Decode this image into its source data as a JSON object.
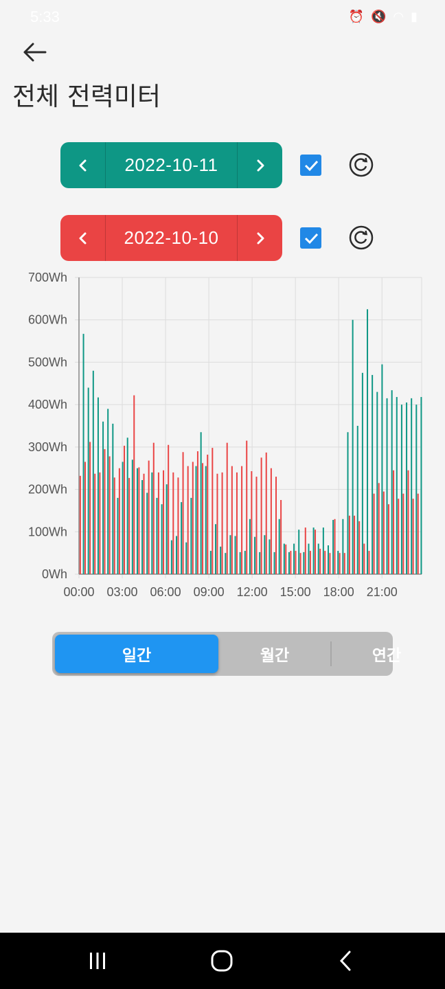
{
  "status_bar": {
    "time": "5:33"
  },
  "header": {
    "title": "전체 전력미터"
  },
  "date_pickers": [
    {
      "date": "2022-10-11",
      "color": "#0e9785",
      "checked": true
    },
    {
      "date": "2022-10-10",
      "color": "#ea4444",
      "checked": true
    }
  ],
  "tabs": [
    {
      "label": "일간",
      "active": true
    },
    {
      "label": "월간",
      "active": false
    },
    {
      "label": "연간",
      "active": false
    }
  ],
  "chart_data": {
    "type": "bar",
    "ylim": [
      0,
      700
    ],
    "y_ticks": [
      "0Wh",
      "100Wh",
      "200Wh",
      "300Wh",
      "400Wh",
      "500Wh",
      "600Wh",
      "700Wh"
    ],
    "x_ticks": [
      "00:00",
      "03:00",
      "06:00",
      "09:00",
      "12:00",
      "15:00",
      "18:00",
      "21:00"
    ],
    "grid": true,
    "series": [
      {
        "date": "2022-10-11",
        "color": "#0e9785",
        "values": [
          567,
          440,
          480,
          417,
          360,
          390,
          355,
          180,
          265,
          322,
          270,
          250,
          222,
          192,
          240,
          180,
          165,
          212,
          80,
          90,
          170,
          75,
          180,
          255,
          335,
          255,
          55,
          118,
          65,
          50,
          92,
          90,
          52,
          55,
          130,
          88,
          52,
          92,
          82,
          52,
          130,
          72,
          52,
          72,
          105,
          52,
          72,
          110,
          72,
          110,
          68,
          128,
          55,
          130,
          335,
          600,
          350,
          475,
          625,
          470,
          430,
          495,
          415,
          434,
          418,
          400,
          405,
          415,
          400,
          418
        ]
      },
      {
        "date": "2022-10-10",
        "color": "#ea4444",
        "values": [
          232,
          265,
          312,
          237,
          240,
          295,
          278,
          228,
          250,
          303,
          227,
          422,
          252,
          237,
          268,
          310,
          240,
          245,
          305,
          240,
          228,
          288,
          255,
          265,
          290,
          262,
          282,
          298,
          237,
          240,
          310,
          255,
          240,
          255,
          315,
          243,
          230,
          275,
          287,
          250,
          230,
          175,
          70,
          55,
          55,
          50,
          110,
          55,
          105,
          60,
          55,
          50,
          130,
          50,
          50,
          138,
          138,
          125,
          72,
          55,
          190,
          215,
          195,
          165,
          245,
          178,
          190,
          245,
          178,
          190
        ]
      }
    ]
  }
}
